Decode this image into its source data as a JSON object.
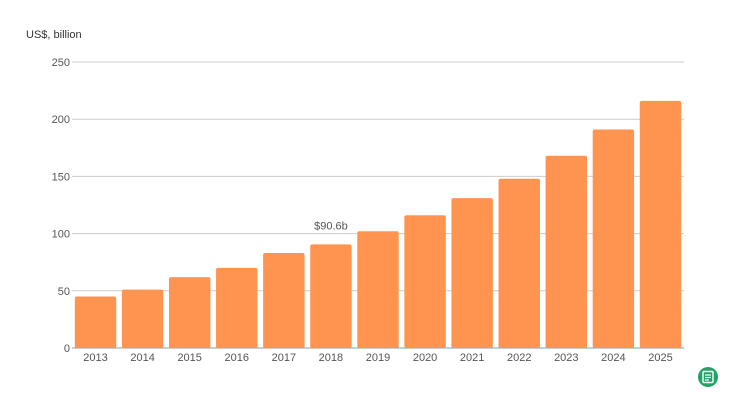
{
  "chart_data": {
    "type": "bar",
    "unit_label": "US$, billion",
    "categories": [
      "2013",
      "2014",
      "2015",
      "2016",
      "2017",
      "2018",
      "2019",
      "2020",
      "2021",
      "2022",
      "2023",
      "2024",
      "2025"
    ],
    "values": [
      45,
      51,
      62,
      70,
      83,
      90.6,
      102,
      116,
      131,
      148,
      168,
      191,
      216
    ],
    "ylim": [
      0,
      250
    ],
    "yticks": [
      0,
      50,
      100,
      150,
      200,
      250
    ],
    "grid": true,
    "bar_color": "#ff9350",
    "annotations": [
      {
        "category": "2018",
        "text": "$90.6b"
      }
    ]
  },
  "badge": {
    "icon": "document-icon",
    "color": "#21a366"
  }
}
